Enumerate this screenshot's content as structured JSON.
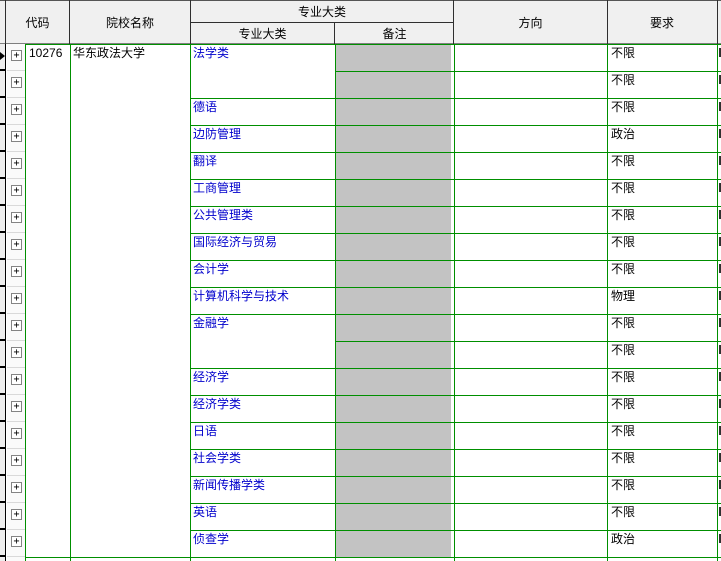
{
  "header": {
    "code": "代码",
    "school": "院校名称",
    "major_group": "专业大类",
    "major_sub": "专业大类",
    "remark": "备注",
    "direction": "方向",
    "requirement": "要求"
  },
  "school_row": {
    "code": "10276",
    "name": "华东政法大学"
  },
  "majors": [
    {
      "label": "法学类",
      "rows": 2
    },
    {
      "label": "德语",
      "rows": 1
    },
    {
      "label": "边防管理",
      "rows": 1
    },
    {
      "label": "翻译",
      "rows": 1
    },
    {
      "label": "工商管理",
      "rows": 1
    },
    {
      "label": "公共管理类",
      "rows": 1
    },
    {
      "label": "国际经济与贸易",
      "rows": 1
    },
    {
      "label": "会计学",
      "rows": 1
    },
    {
      "label": "计算机科学与技术",
      "rows": 1
    },
    {
      "label": "金融学",
      "rows": 2
    },
    {
      "label": "经济学",
      "rows": 1
    },
    {
      "label": "经济学类",
      "rows": 1
    },
    {
      "label": "日语",
      "rows": 1
    },
    {
      "label": "社会学类",
      "rows": 1
    },
    {
      "label": "新闻传播学类",
      "rows": 1
    },
    {
      "label": "英语",
      "rows": 1
    },
    {
      "label": "侦查学",
      "rows": 1
    }
  ],
  "row_requirements": [
    "不限",
    "不限",
    "不限",
    "政治",
    "不限",
    "不限",
    "不限",
    "不限",
    "不限",
    "物理",
    "不限",
    "不限",
    "不限",
    "不限",
    "不限",
    "不限",
    "不限",
    "不限",
    "政治"
  ],
  "icons": {
    "expand_glyph": "+",
    "current_row_indicator": "right-arrow"
  },
  "colors": {
    "grid_green": "#008F00",
    "remark_silver": "#C3C3C3",
    "major_link_blue": "#0000CC",
    "header_bg": "#F0F0F0"
  }
}
